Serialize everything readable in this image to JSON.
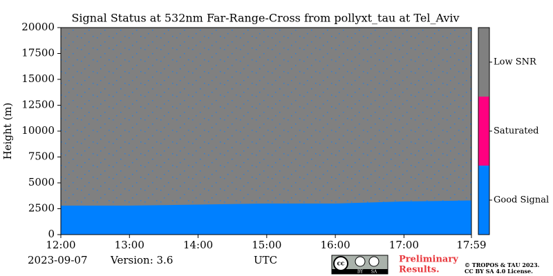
{
  "chart_data": {
    "type": "heatmap",
    "title": "Signal Status at 532nm Far-Range-Cross from pollyxt_tau at Tel_Aviv",
    "y_label": "Height (m)",
    "x_label": "UTC",
    "xlim": [
      12,
      17.983
    ],
    "xticks": [
      {
        "value": 12,
        "label": "12:00"
      },
      {
        "value": 13,
        "label": "13:00"
      },
      {
        "value": 14,
        "label": "14:00"
      },
      {
        "value": 15,
        "label": "15:00"
      },
      {
        "value": 16,
        "label": "16:00"
      },
      {
        "value": 17,
        "label": "17:00"
      },
      {
        "value": 17.983,
        "label": "17:59"
      }
    ],
    "ylim": [
      0,
      20000
    ],
    "yticks": [
      0,
      2500,
      5000,
      7500,
      10000,
      12500,
      15000,
      17500,
      20000
    ],
    "x": [
      12,
      13,
      14,
      15,
      16,
      17,
      17.983
    ],
    "values": [
      2800,
      2800,
      2900,
      3000,
      3000,
      3200,
      3300
    ],
    "legend": [
      {
        "name": "Good Signal",
        "color": "#0080ff"
      },
      {
        "name": "Saturated",
        "color": "#ff0080"
      },
      {
        "name": "Low SNR",
        "color": "#808080"
      }
    ]
  },
  "footer": {
    "date": "2023-09-07",
    "version": "Version: 3.6",
    "notice": [
      "Preliminary",
      "Results."
    ],
    "copyright": "© TROPOS & TAU 2023.",
    "license": "CC BY SA 4.0 License.",
    "badge": [
      "BY",
      "SA"
    ]
  }
}
